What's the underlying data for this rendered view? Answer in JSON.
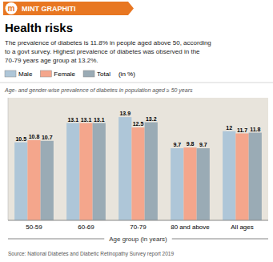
{
  "chart_data": {
    "type": "bar",
    "logo": "m",
    "header": "MINT GRAPHITI",
    "title": "Health risks",
    "subtitle": "The prevalence of diabetes is 11.8% in people aged above 50, according\nto a govt survey. Highest prevalence of diabetes was observed in the\n70-79 years age group at 13.2%.",
    "legend_title": "(in %)",
    "chart_subtitle": "Age- and gender-wise prevalence of diabetes in population aged ≥ 50 years",
    "x_label": "Age group (in years)",
    "source": "Source: National Diabetes and Diabetic Retinopathy Survey report 2019",
    "categories": [
      "50-59",
      "60-69",
      "70-79",
      "80 and above",
      "All ages"
    ],
    "series": [
      {
        "name": "Male",
        "color": "#aec6d8",
        "values": [
          10.5,
          13.1,
          13.9,
          9.7,
          12.0
        ]
      },
      {
        "name": "Female",
        "color": "#f4a68c",
        "values": [
          10.8,
          13.1,
          12.5,
          9.8,
          11.7
        ]
      },
      {
        "name": "Total",
        "color": "#9aabb5",
        "values": [
          10.7,
          13.1,
          13.2,
          9.7,
          11.8
        ]
      }
    ],
    "ylim": [
      0,
      16.5
    ],
    "yticks": [],
    "tick_labels": "x",
    "grid": false,
    "legend": "top",
    "data_labels": true
  }
}
